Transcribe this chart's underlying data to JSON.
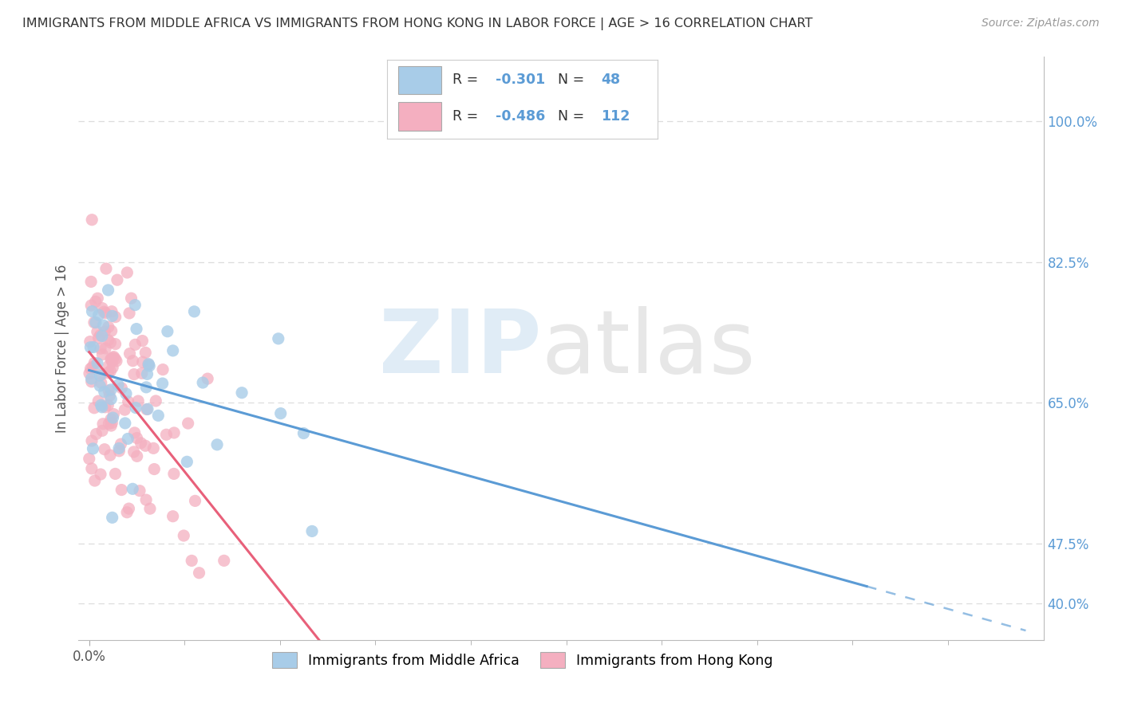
{
  "title": "IMMIGRANTS FROM MIDDLE AFRICA VS IMMIGRANTS FROM HONG KONG IN LABOR FORCE | AGE > 16 CORRELATION CHART",
  "source": "Source: ZipAtlas.com",
  "ylabel": "In Labor Force | Age > 16",
  "legend_label_1": "Immigrants from Middle Africa",
  "legend_label_2": "Immigrants from Hong Kong",
  "R1": -0.301,
  "N1": 48,
  "R2": -0.486,
  "N2": 112,
  "color1": "#a8cce8",
  "color2": "#f4afc0",
  "line_color1": "#5b9bd5",
  "line_color2": "#e8607a",
  "bg_color": "#ffffff",
  "xlim": [
    -0.003,
    0.27
  ],
  "ylim": [
    0.355,
    1.08
  ],
  "ytick_positions": [
    0.4,
    0.475,
    0.65,
    0.825,
    1.0
  ],
  "ytick_labels": [
    "40.0%",
    "47.5%",
    "65.0%",
    "82.5%",
    "100.0%"
  ],
  "xtick_val": 0.0,
  "xtick_label": "0.0%"
}
